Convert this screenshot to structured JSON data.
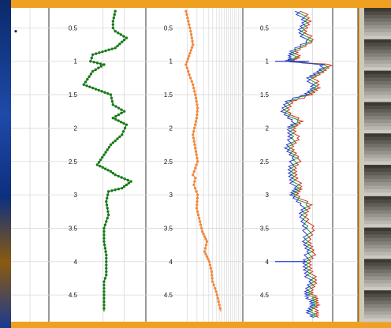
{
  "chart_data": [
    {
      "type": "line",
      "title": "",
      "ylim": [
        0.2,
        4.9
      ],
      "grid": true,
      "yticks": [
        "0.5",
        "1",
        "1.5",
        "2",
        "2.5",
        "3",
        "3.5",
        "4",
        "4.5"
      ],
      "color": "#1a7a1a",
      "marker": "circle",
      "series": [
        {
          "x": [
            0.6,
            0.55,
            0.55,
            0.6,
            0.85,
            0.6,
            0.1,
            0.05,
            0.35,
            0.1,
            -0.1,
            0.3,
            0.5,
            0.55,
            0.8,
            0.55,
            0.85,
            0.75,
            0.5,
            0.35,
            0.2,
            0.5,
            0.6,
            0.95,
            0.75,
            0.45,
            0.4,
            0.45,
            0.35,
            0.35,
            0.4,
            0.4,
            0.4,
            0.4,
            0.35,
            0.35,
            0.35,
            0.35
          ],
          "y": [
            0.25,
            0.4,
            0.5,
            0.55,
            0.65,
            0.8,
            0.9,
            1.0,
            1.05,
            1.15,
            1.35,
            1.45,
            1.5,
            1.65,
            1.75,
            1.85,
            1.95,
            2.1,
            2.25,
            2.4,
            2.55,
            2.65,
            2.7,
            2.8,
            2.9,
            2.95,
            3.1,
            3.3,
            3.5,
            3.7,
            3.9,
            4.0,
            4.1,
            4.2,
            4.3,
            4.4,
            4.6,
            4.75
          ]
        }
      ]
    },
    {
      "type": "line",
      "title": "",
      "ylim": [
        0.2,
        4.9
      ],
      "grid": true,
      "log_x": true,
      "yticks": [
        "0.5",
        "1",
        "1.5",
        "2",
        "2.5",
        "3",
        "3.5",
        "4",
        "4.5"
      ],
      "color": "#f08a40",
      "marker": "circle",
      "series": [
        {
          "x": [
            0.05,
            0.1,
            0.15,
            0.2,
            0.05,
            0.12,
            0.2,
            0.25,
            0.3,
            0.28,
            0.2,
            0.25,
            0.3,
            0.2,
            0.25,
            0.22,
            0.3,
            0.28,
            0.35,
            0.4,
            0.5,
            0.45,
            0.55,
            0.6,
            0.62,
            0.7,
            0.75,
            0.8
          ],
          "y": [
            0.25,
            0.4,
            0.55,
            0.75,
            1.05,
            1.2,
            1.35,
            1.5,
            1.7,
            1.85,
            2.1,
            2.3,
            2.5,
            2.7,
            2.75,
            2.85,
            3.0,
            3.2,
            3.4,
            3.55,
            3.7,
            3.85,
            4.0,
            4.15,
            4.3,
            4.45,
            4.6,
            4.75
          ]
        }
      ]
    },
    {
      "type": "line",
      "title": "",
      "ylim": [
        0.2,
        4.9
      ],
      "grid": true,
      "yticks": [
        "0.5",
        "1",
        "1.5",
        "2",
        "2.5",
        "3",
        "3.5",
        "4",
        "4.5"
      ],
      "series": [
        {
          "color": "#2a3ad0",
          "x": [
            0.4,
            0.5,
            0.45,
            0.55,
            0.3,
            0.3,
            0.2,
            0.85,
            0.75,
            0.6,
            0.65,
            0.55,
            0.2,
            0.15,
            0.35,
            0.25,
            0.3,
            0.2,
            0.35,
            0.25,
            0.3,
            0.35,
            0.3,
            0.5,
            0.45,
            0.55,
            0.5,
            0.6,
            0.5,
            0.55,
            0.6,
            0.55,
            0.6,
            0.65,
            0.6,
            0.65
          ],
          "y": [
            0.25,
            0.4,
            0.55,
            0.7,
            0.85,
            0.95,
            1.0,
            1.05,
            1.15,
            1.25,
            1.4,
            1.5,
            1.6,
            1.75,
            1.9,
            2.0,
            2.15,
            2.3,
            2.45,
            2.6,
            2.75,
            2.9,
            3.0,
            3.15,
            3.3,
            3.5,
            3.7,
            3.85,
            4.0,
            4.15,
            4.3,
            4.45,
            4.55,
            4.65,
            4.75,
            4.85
          ]
        },
        {
          "color": "#2a9a2a",
          "x": [
            0.45,
            0.55,
            0.5,
            0.6,
            0.35,
            0.35,
            0.25,
            0.9,
            0.8,
            0.65,
            0.7,
            0.6,
            0.25,
            0.2,
            0.4,
            0.3,
            0.35,
            0.25,
            0.4,
            0.3,
            0.35,
            0.4,
            0.35,
            0.55,
            0.5,
            0.6,
            0.55,
            0.65,
            0.55,
            0.6,
            0.65,
            0.6,
            0.65,
            0.7,
            0.65,
            0.7
          ],
          "y": [
            0.25,
            0.4,
            0.55,
            0.7,
            0.85,
            0.95,
            1.0,
            1.05,
            1.15,
            1.25,
            1.4,
            1.5,
            1.6,
            1.75,
            1.9,
            2.0,
            2.15,
            2.3,
            2.45,
            2.6,
            2.75,
            2.9,
            3.0,
            3.15,
            3.3,
            3.5,
            3.7,
            3.85,
            4.0,
            4.15,
            4.3,
            4.45,
            4.55,
            4.65,
            4.75,
            4.85
          ]
        },
        {
          "color": "#d03020",
          "x": [
            0.5,
            0.6,
            0.55,
            0.65,
            0.4,
            0.4,
            0.3,
            0.95,
            0.85,
            0.7,
            0.75,
            0.65,
            0.3,
            0.25,
            0.45,
            0.35,
            0.4,
            0.3,
            0.45,
            0.35,
            0.4,
            0.45,
            0.4,
            0.6,
            0.55,
            0.65,
            0.6,
            0.7,
            0.6,
            0.65,
            0.7,
            0.65,
            0.7,
            0.75,
            0.7,
            0.75
          ],
          "y": [
            0.25,
            0.4,
            0.55,
            0.7,
            0.85,
            0.95,
            1.0,
            1.05,
            1.15,
            1.25,
            1.4,
            1.5,
            1.6,
            1.75,
            1.9,
            2.0,
            2.15,
            2.3,
            2.45,
            2.6,
            2.75,
            2.9,
            3.0,
            3.15,
            3.3,
            3.5,
            3.7,
            3.85,
            4.0,
            4.15,
            4.3,
            4.45,
            4.55,
            4.65,
            4.75,
            4.85
          ]
        }
      ]
    }
  ],
  "core_image": {
    "kind": "core-photo-strip"
  },
  "colors": {
    "border": "#f0a020",
    "panel": "#ffffff",
    "grid": "#d8d8d8"
  }
}
